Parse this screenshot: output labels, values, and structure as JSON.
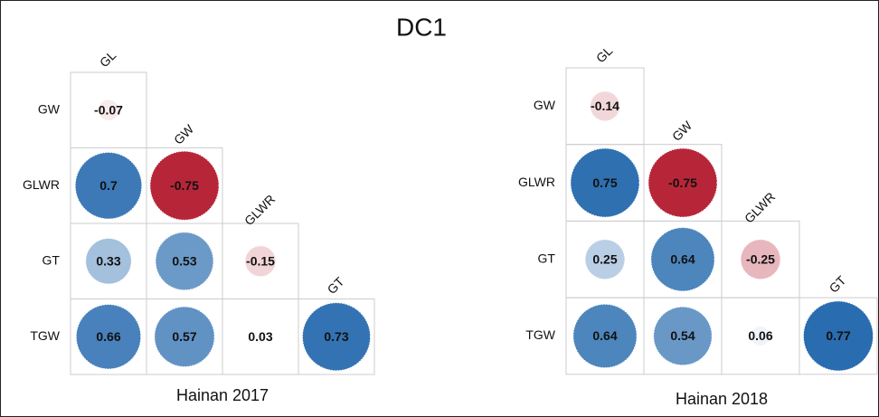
{
  "title": "DC1",
  "chart_data": [
    {
      "type": "corrplot",
      "title": "Hainan 2017",
      "rows": [
        "GW",
        "GLWR",
        "GT",
        "TGW"
      ],
      "cols": [
        "GL",
        "GW",
        "GLWR",
        "GT"
      ],
      "values": [
        [
          -0.07
        ],
        [
          0.7,
          -0.75
        ],
        [
          0.33,
          0.53,
          -0.15
        ],
        [
          0.66,
          0.57,
          0.03,
          0.73
        ]
      ],
      "color_positive": "#2166ac",
      "color_negative": "#b2182b"
    },
    {
      "type": "corrplot",
      "title": "Hainan 2018",
      "rows": [
        "GW",
        "GLWR",
        "GT",
        "TGW"
      ],
      "cols": [
        "GL",
        "GW",
        "GLWR",
        "GT"
      ],
      "values": [
        [
          -0.14
        ],
        [
          0.75,
          -0.75
        ],
        [
          0.25,
          0.64,
          -0.25
        ],
        [
          0.64,
          0.54,
          0.06,
          0.77
        ]
      ],
      "color_positive": "#2166ac",
      "color_negative": "#b2182b"
    }
  ]
}
